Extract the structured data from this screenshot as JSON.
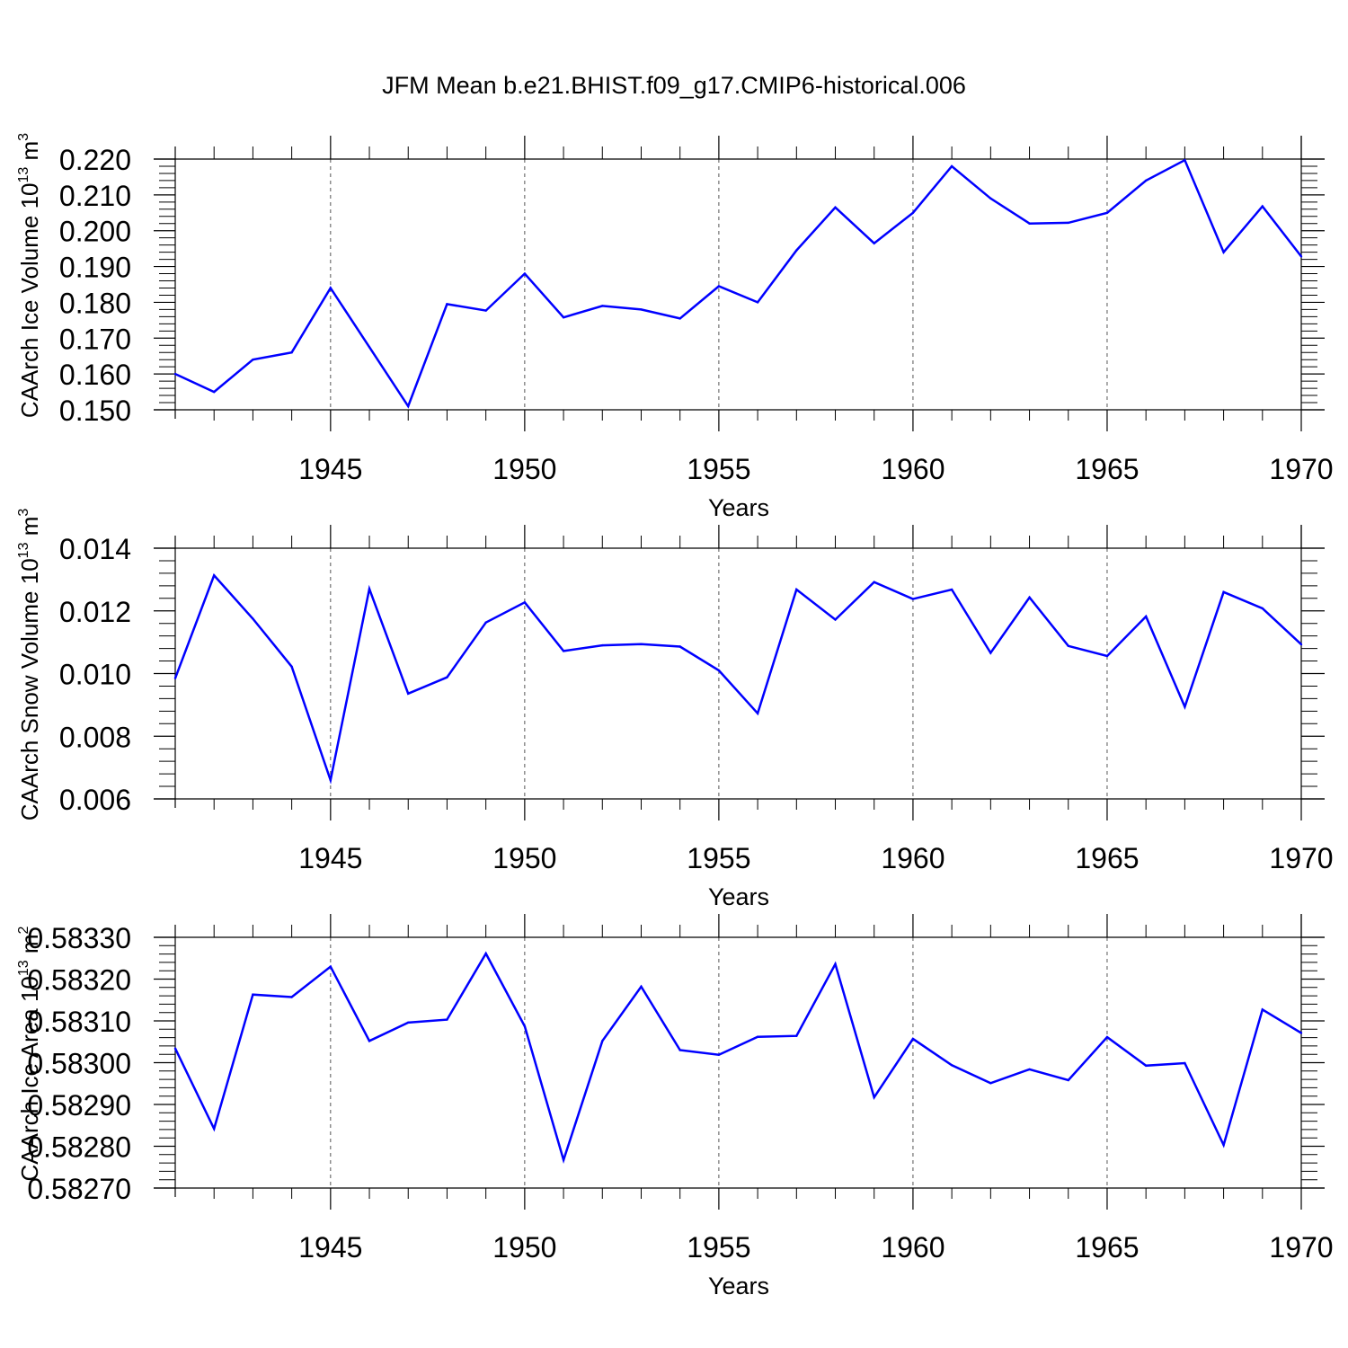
{
  "title": "JFM Mean b.e21.BHIST.f09_g17.CMIP6-historical.006",
  "colors": {
    "line": "#0000ff",
    "axis": "#000000",
    "grid": "#555555"
  },
  "chart_data": [
    {
      "type": "line",
      "title": "JFM Mean b.e21.BHIST.f09_g17.CMIP6-historical.006",
      "ylabel": "CAArch Ice Volume 10",
      "ylabel_sup": "13",
      "ylabel_unit": "m",
      "ylabel_unit_sup": "3",
      "xlabel": "Years",
      "xlim": [
        1941,
        1970
      ],
      "ylim": [
        0.15,
        0.22
      ],
      "xticks": [
        1945,
        1950,
        1955,
        1960,
        1965,
        1970
      ],
      "yticks": [
        0.15,
        0.16,
        0.17,
        0.18,
        0.19,
        0.2,
        0.21,
        0.22
      ],
      "ytick_labels": [
        "0.150",
        "0.160",
        "0.170",
        "0.180",
        "0.190",
        "0.200",
        "0.210",
        "0.220"
      ],
      "x": [
        1941,
        1942,
        1943,
        1944,
        1945,
        1946,
        1947,
        1948,
        1949,
        1950,
        1951,
        1952,
        1953,
        1954,
        1955,
        1956,
        1957,
        1958,
        1959,
        1960,
        1961,
        1962,
        1963,
        1964,
        1965,
        1966,
        1967,
        1968,
        1969,
        1970
      ],
      "values": [
        0.16,
        0.155,
        0.164,
        0.166,
        0.184,
        0.1675,
        0.151,
        0.1795,
        0.1777,
        0.188,
        0.1758,
        0.179,
        0.178,
        0.1755,
        0.1845,
        0.18,
        0.1945,
        0.2065,
        0.1965,
        0.205,
        0.218,
        0.209,
        0.202,
        0.2022,
        0.205,
        0.214,
        0.2197,
        0.194,
        0.2068,
        0.1928
      ]
    },
    {
      "type": "line",
      "ylabel": "CAArch Snow Volume 10",
      "ylabel_sup": "13",
      "ylabel_unit": "m",
      "ylabel_unit_sup": "3",
      "xlabel": "Years",
      "xlim": [
        1941,
        1970
      ],
      "ylim": [
        0.006,
        0.014
      ],
      "xticks": [
        1945,
        1950,
        1955,
        1960,
        1965,
        1970
      ],
      "yticks": [
        0.006,
        0.008,
        0.01,
        0.012,
        0.014
      ],
      "ytick_labels": [
        "0.006",
        "0.008",
        "0.010",
        "0.012",
        "0.014"
      ],
      "x": [
        1941,
        1942,
        1943,
        1944,
        1945,
        1946,
        1947,
        1948,
        1949,
        1950,
        1951,
        1952,
        1953,
        1954,
        1955,
        1956,
        1957,
        1958,
        1959,
        1960,
        1961,
        1962,
        1963,
        1964,
        1965,
        1966,
        1967,
        1968,
        1969,
        1970
      ],
      "values": [
        0.00985,
        0.01313,
        0.01175,
        0.01022,
        0.0066,
        0.0127,
        0.00936,
        0.00988,
        0.01163,
        0.01227,
        0.01072,
        0.0109,
        0.01094,
        0.01086,
        0.0101,
        0.00873,
        0.01268,
        0.01172,
        0.01292,
        0.01238,
        0.01268,
        0.01066,
        0.01243,
        0.01088,
        0.01056,
        0.01182,
        0.00894,
        0.0126,
        0.01208,
        0.01093
      ]
    },
    {
      "type": "line",
      "ylabel": "CAArch Ice Area 10",
      "ylabel_sup": "13",
      "ylabel_unit": "m",
      "ylabel_unit_sup": "2",
      "xlabel": "Years",
      "xlim": [
        1941,
        1970
      ],
      "ylim": [
        0.5827,
        0.5833
      ],
      "xticks": [
        1945,
        1950,
        1955,
        1960,
        1965,
        1970
      ],
      "yticks": [
        0.5827,
        0.5828,
        0.5829,
        0.583,
        0.5831,
        0.5832,
        0.5833
      ],
      "ytick_labels": [
        "0.58270",
        "0.58280",
        "0.58290",
        "0.58300",
        "0.58310",
        "0.58320",
        "0.58330"
      ],
      "x": [
        1941,
        1942,
        1943,
        1944,
        1945,
        1946,
        1947,
        1948,
        1949,
        1950,
        1951,
        1952,
        1953,
        1954,
        1955,
        1956,
        1957,
        1958,
        1959,
        1960,
        1961,
        1962,
        1963,
        1964,
        1965,
        1966,
        1967,
        1968,
        1969,
        1970
      ],
      "values": [
        0.583034,
        0.582842,
        0.583163,
        0.583157,
        0.58323,
        0.583052,
        0.583096,
        0.583103,
        0.583261,
        0.583087,
        0.582767,
        0.583052,
        0.583182,
        0.58303,
        0.583019,
        0.583062,
        0.583064,
        0.583236,
        0.582917,
        0.583057,
        0.582994,
        0.582951,
        0.582984,
        0.582958,
        0.583061,
        0.582993,
        0.582999,
        0.582803,
        0.583127,
        0.583071
      ]
    }
  ]
}
